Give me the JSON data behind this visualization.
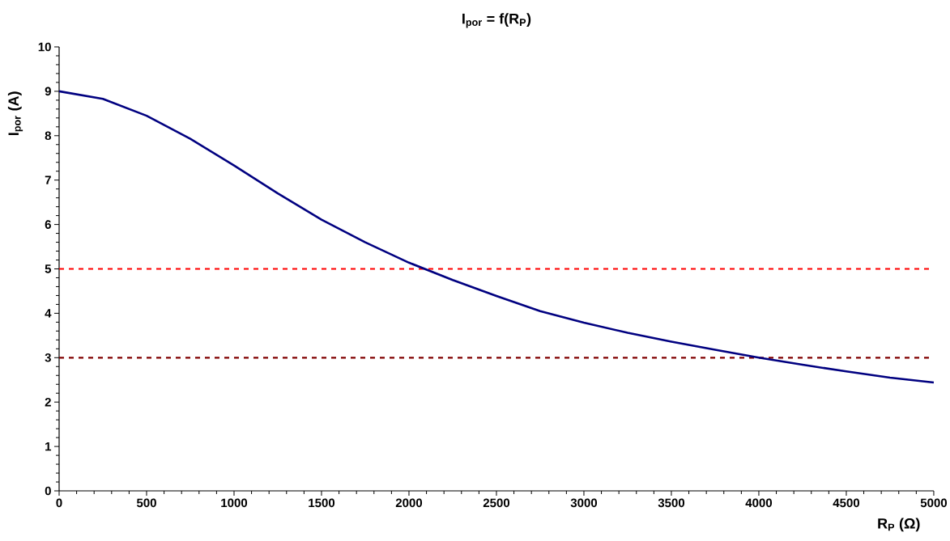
{
  "chart_data": {
    "type": "line",
    "title": "I$_{por}$ = f(R$_{P}$)",
    "xlabel": "R$_{P}$ (Ω)",
    "ylabel": "I$_{por}$ (A)",
    "x": [
      0,
      250,
      500,
      750,
      1000,
      1250,
      1500,
      1750,
      2000,
      2250,
      2500,
      2750,
      3000,
      3250,
      3500,
      3750,
      4000,
      4250,
      4500,
      4750,
      5000
    ],
    "series": [
      {
        "color": "#000080",
        "values": [
          9.0,
          8.83,
          8.45,
          7.93,
          7.33,
          6.7,
          6.11,
          5.6,
          5.14,
          4.75,
          4.39,
          4.05,
          3.79,
          3.56,
          3.36,
          3.18,
          3.0,
          2.84,
          2.69,
          2.55,
          2.44
        ]
      }
    ],
    "xlim": [
      0,
      5000
    ],
    "ylim": [
      0,
      10
    ],
    "xticks": [
      0,
      500,
      1000,
      1500,
      2000,
      2500,
      3000,
      3500,
      4000,
      4500,
      5000
    ],
    "yticks": [
      0,
      1,
      2,
      3,
      4,
      5,
      6,
      7,
      8,
      9,
      10
    ],
    "ref_lines": [
      {
        "axis": "y",
        "value": 5,
        "color": "#ff0000",
        "line_style": "dashed"
      },
      {
        "axis": "y",
        "value": 3,
        "color": "#800000",
        "line_style": "dashed"
      }
    ],
    "marker": "none",
    "line_style": "solid"
  }
}
